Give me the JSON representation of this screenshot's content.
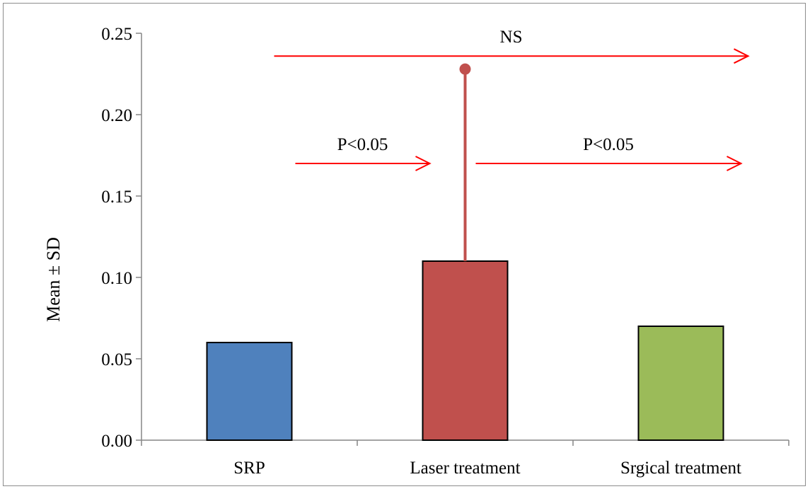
{
  "chart_data": {
    "type": "bar",
    "categories": [
      "SRP",
      "Laser treatment",
      "Srgical treatment"
    ],
    "values": [
      0.06,
      0.11,
      0.07
    ],
    "error_bars": [
      null,
      0.118,
      null
    ],
    "ylabel": "Mean ± SD",
    "xlabel": "",
    "ylim": [
      0,
      0.25
    ],
    "yticks": [
      "0.00",
      "0.05",
      "0.10",
      "0.15",
      "0.20",
      "0.25"
    ],
    "ytick_values": [
      0,
      0.05,
      0.1,
      0.15,
      0.2,
      0.25
    ],
    "grid": false,
    "legend": "none",
    "colors": [
      "#4f81bd",
      "#c0504d",
      "#9bbb59"
    ],
    "error_color": "#c0504d",
    "annotation_color": "#ff0000",
    "annotations": [
      {
        "label": "NS",
        "from": "SRP",
        "to": "Srgical treatment",
        "y": 0.236
      },
      {
        "label": "P<0.05",
        "from": "SRP",
        "to": "Laser treatment",
        "y": 0.17
      },
      {
        "label": "P<0.05",
        "from": "Laser treatment",
        "to": "Srgical treatment",
        "y": 0.17
      }
    ]
  }
}
